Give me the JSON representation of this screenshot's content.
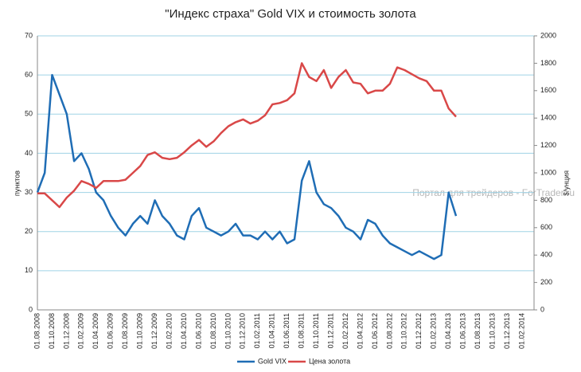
{
  "chart_data": {
    "type": "line",
    "title": "\"Индекс страха\" Gold VIX и стоимость золота",
    "y_label": "пунктов",
    "y2_label": "$/унция",
    "annotation": "Портал для трейдеров - ForTrader.ru",
    "categories": [
      "01.08.2008",
      null,
      "01.10.2008",
      null,
      "01.12.2008",
      null,
      "01.02.2009",
      null,
      "01.04.2009",
      null,
      "01.06.2009",
      null,
      "01.08.2009",
      null,
      "01.10.2009",
      null,
      "01.12.2009",
      null,
      "01.02.2010",
      null,
      "01.04.2010",
      null,
      "01.06.2010",
      null,
      "01.08.2010",
      null,
      "01.10.2010",
      null,
      "01.12.2010",
      null,
      "01.02.2011",
      null,
      "01.04.2011",
      null,
      "01.06.2011",
      null,
      "01.08.2011",
      null,
      "01.10.2011",
      null,
      "01.12.2011",
      null,
      "01.02.2012",
      null,
      "01.04.2012",
      null,
      "01.06.2012",
      null,
      "01.08.2012",
      null,
      "01.10.2012",
      null,
      "01.12.2012",
      null,
      "01.02.2013",
      null,
      "01.04.2013",
      null,
      "01.06.2013",
      null,
      "01.08.2013",
      null,
      "01.10.2013",
      null,
      "01.12.2013",
      null,
      "01.02.2014"
    ],
    "series": [
      {
        "name": "Gold VIX",
        "color": "#1f6db5",
        "values": [
          30,
          35,
          60,
          55,
          50,
          38,
          40,
          36,
          30,
          28,
          24,
          21,
          19,
          22,
          24,
          22,
          28,
          24,
          22,
          19,
          18,
          24,
          26,
          21,
          20,
          19,
          20,
          22,
          19,
          19,
          18,
          20,
          18,
          20,
          17,
          18,
          33,
          38,
          30,
          27,
          26,
          24,
          21,
          20,
          18,
          23,
          22,
          19,
          17,
          16,
          15,
          14,
          15,
          14,
          13,
          14,
          30,
          24,
          null,
          null,
          null,
          null,
          null,
          null,
          null,
          null,
          null
        ]
      },
      {
        "name": "Цена золота",
        "color": "#d94848",
        "axis": "y2",
        "values": [
          850,
          850,
          800,
          750,
          820,
          870,
          940,
          920,
          890,
          940,
          940,
          940,
          950,
          1000,
          1050,
          1130,
          1150,
          1110,
          1100,
          1110,
          1150,
          1200,
          1240,
          1190,
          1230,
          1290,
          1340,
          1370,
          1390,
          1360,
          1380,
          1420,
          1500,
          1510,
          1530,
          1580,
          1800,
          1700,
          1670,
          1750,
          1620,
          1700,
          1750,
          1660,
          1650,
          1580,
          1600,
          1600,
          1650,
          1770,
          1750,
          1720,
          1690,
          1670,
          1600,
          1600,
          1470,
          1410,
          null,
          null,
          null,
          null,
          null,
          null,
          null,
          null,
          null
        ]
      }
    ],
    "ylim": [
      0,
      70
    ],
    "yticks": [
      0,
      10,
      20,
      30,
      40,
      50,
      60,
      70
    ],
    "y2lim": [
      0,
      2000
    ],
    "y2ticks": [
      0,
      200,
      400,
      600,
      800,
      1000,
      1200,
      1400,
      1600,
      1800,
      2000
    ],
    "grid": true,
    "legend": "bottom"
  }
}
